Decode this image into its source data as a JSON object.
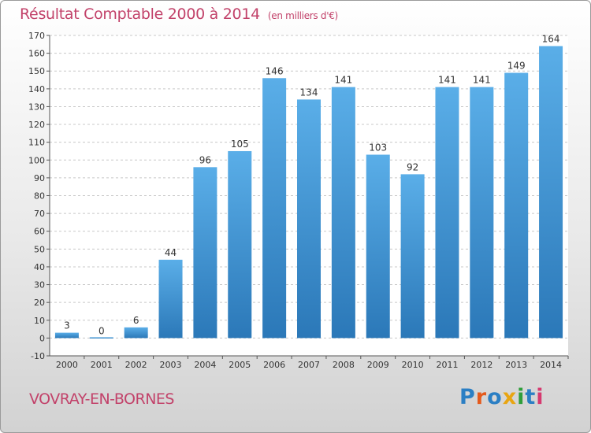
{
  "header": {
    "title": "Résultat Comptable 2000 à 2014",
    "subtitle": "(en milliers d'€)"
  },
  "footer": {
    "town": "VOVRAY-EN-BORNES",
    "logo_letters": [
      "P",
      "r",
      "o",
      "x",
      "i",
      "t",
      "i"
    ]
  },
  "colors": {
    "title": "#c2426a",
    "bar_top": "#5aaee8",
    "bar_bottom": "#2b78b8",
    "grid": "#c8c8c8"
  },
  "chart_data": {
    "type": "bar",
    "categories": [
      "2000",
      "2001",
      "2002",
      "2003",
      "2004",
      "2005",
      "2006",
      "2007",
      "2008",
      "2009",
      "2010",
      "2011",
      "2012",
      "2013",
      "2014"
    ],
    "values": [
      3,
      0,
      6,
      44,
      96,
      105,
      146,
      134,
      141,
      103,
      92,
      141,
      141,
      149,
      164
    ],
    "title": "Résultat Comptable 2000 à 2014",
    "subtitle": "(en milliers d'€)",
    "xlabel": "",
    "ylabel": "",
    "ylim": [
      -10,
      170
    ],
    "yticks": [
      -10,
      0,
      10,
      20,
      30,
      40,
      50,
      60,
      70,
      80,
      90,
      100,
      110,
      120,
      130,
      140,
      150,
      160,
      170
    ],
    "grid": true,
    "legend": "none"
  }
}
